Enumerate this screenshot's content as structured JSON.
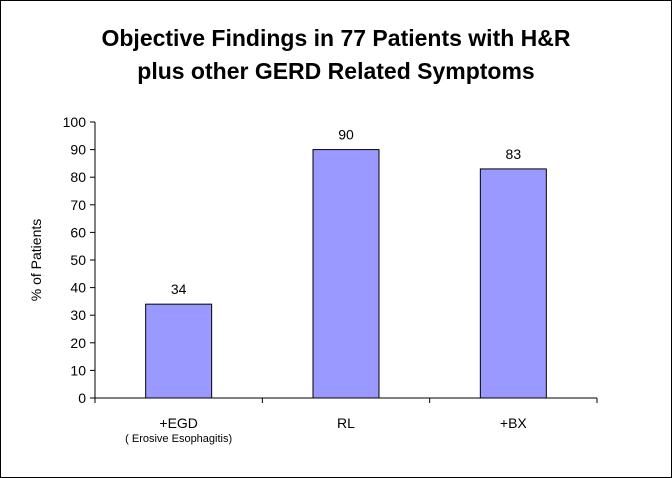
{
  "chart_data": {
    "type": "bar",
    "title": "Objective Findings in 77 Patients with H&R",
    "subtitle": "plus other GERD Related Symptoms",
    "ylabel": "% of Patients",
    "xlabel": "",
    "categories": [
      "+EGD",
      "RL",
      "+BX"
    ],
    "category_sublabels": [
      "( Erosive Esophagitis)",
      "",
      ""
    ],
    "values": [
      34,
      90,
      83
    ],
    "data_labels": [
      "34",
      "90",
      "83"
    ],
    "ylim": [
      0,
      100
    ],
    "yticks": [
      0,
      10,
      20,
      30,
      40,
      50,
      60,
      70,
      80,
      90,
      100
    ],
    "grid": false,
    "legend": "none",
    "colors": {
      "bar_fill": "#9999ff",
      "bar_stroke": "#000000"
    }
  }
}
